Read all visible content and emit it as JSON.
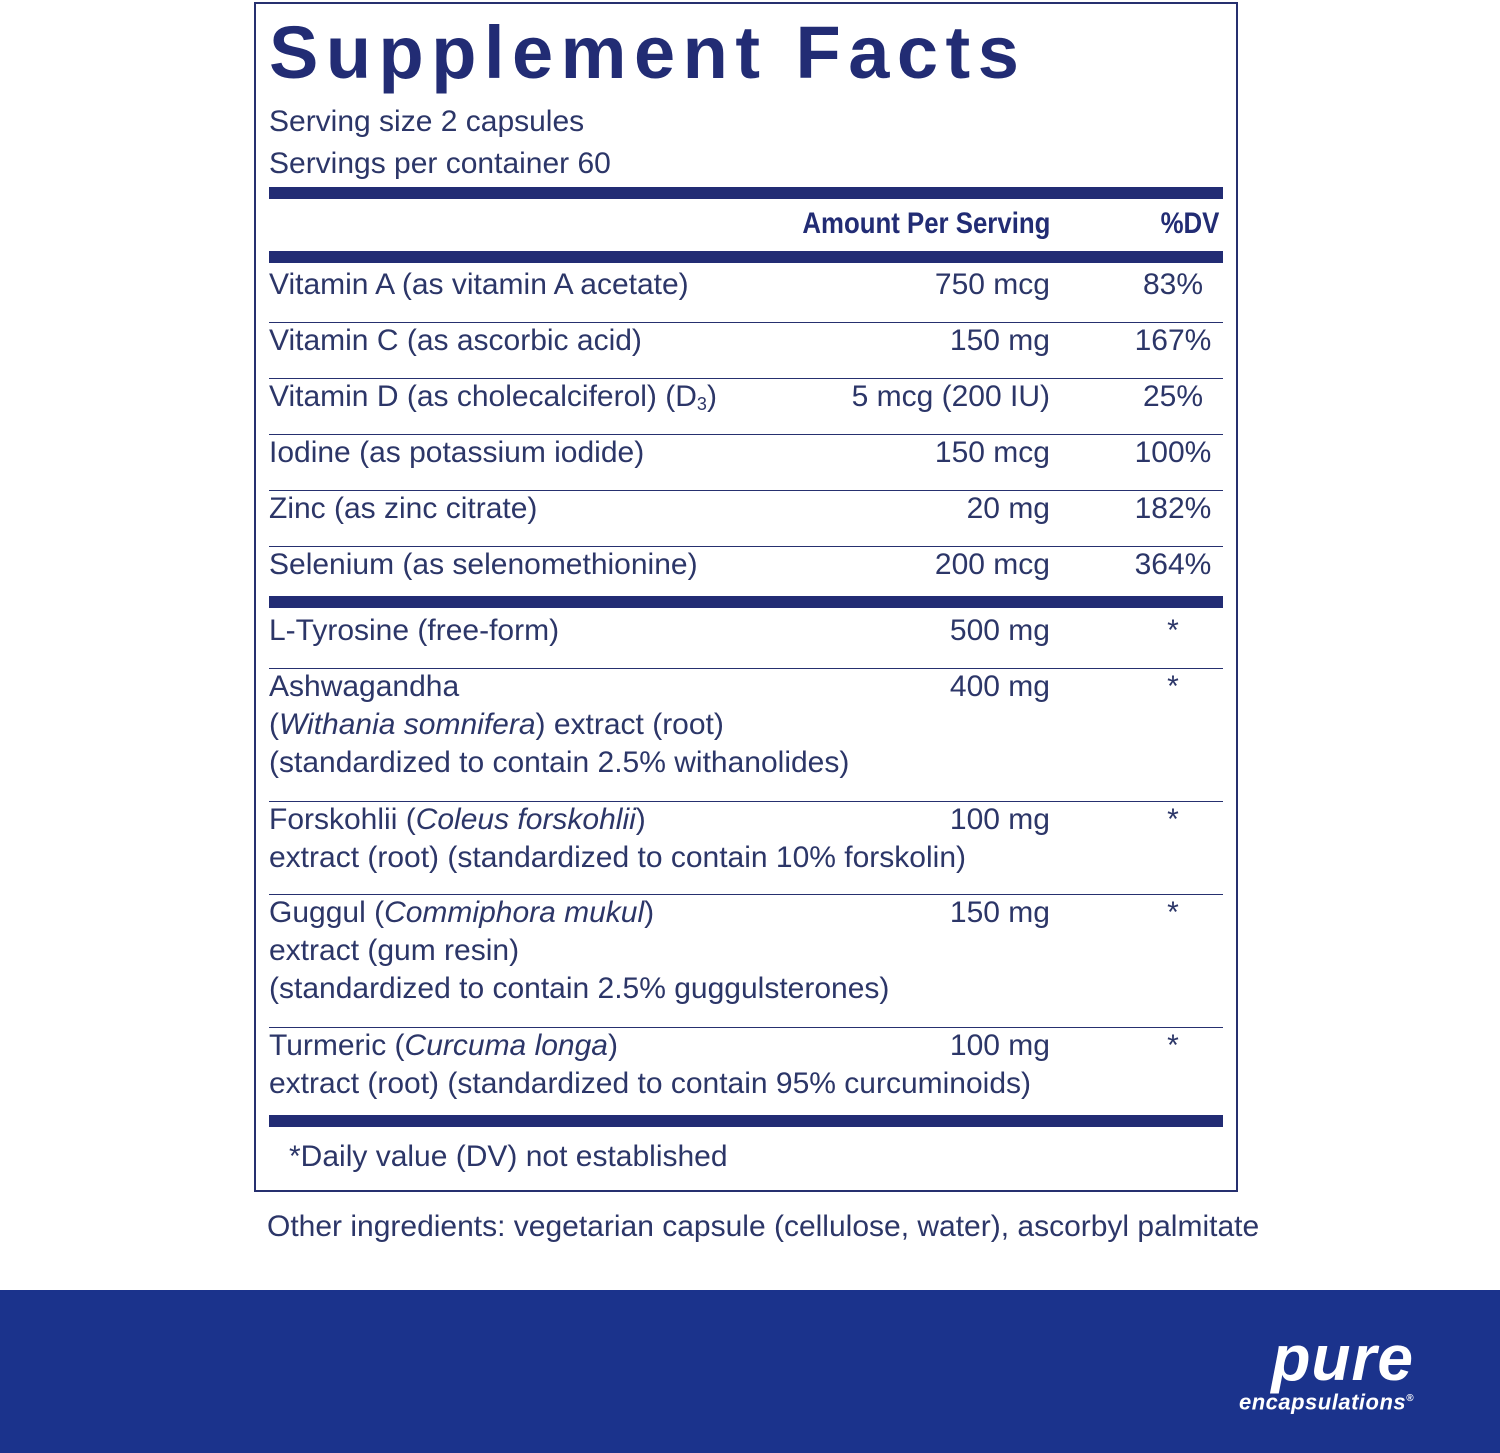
{
  "label": {
    "title": "Supplement Facts",
    "serving_size": "Serving size  2 capsules",
    "servings_per_container": "Servings per container  60",
    "header": {
      "amount": "Amount Per Serving",
      "dv": "%DV"
    },
    "rows": [
      {
        "name": [
          [
            {
              "t": "Vitamin A (as vitamin A acetate)"
            }
          ]
        ],
        "amount": "750 mcg",
        "dv": "83%"
      },
      {
        "name": [
          [
            {
              "t": "Vitamin C (as ascorbic acid)"
            }
          ]
        ],
        "amount": "150 mg",
        "dv": "167%"
      },
      {
        "name": [
          [
            {
              "t": "Vitamin D (as cholecalciferol) (D"
            },
            {
              "t": "3",
              "sub": true
            },
            {
              "t": ")"
            }
          ]
        ],
        "amount": "5 mcg (200 IU)",
        "dv": "25%"
      },
      {
        "name": [
          [
            {
              "t": "Iodine (as potassium iodide)"
            }
          ]
        ],
        "amount": "150 mcg",
        "dv": "100%"
      },
      {
        "name": [
          [
            {
              "t": "Zinc (as zinc citrate)"
            }
          ]
        ],
        "amount": "20 mg",
        "dv": "182%"
      },
      {
        "name": [
          [
            {
              "t": "Selenium (as selenomethionine)"
            }
          ]
        ],
        "amount": "200 mcg",
        "dv": "364%"
      },
      {
        "name": [
          [
            {
              "t": "L-Tyrosine (free-form)"
            }
          ]
        ],
        "amount": "500 mg",
        "dv": "*"
      },
      {
        "name": [
          [
            {
              "t": "Ashwagandha"
            }
          ],
          [
            {
              "t": "("
            },
            {
              "t": "Withania somnifera",
              "i": true
            },
            {
              "t": ") extract (root)"
            }
          ],
          [
            {
              "t": "(standardized to contain 2.5% withanolides)"
            }
          ]
        ],
        "amount": "400 mg",
        "dv": "*"
      },
      {
        "name": [
          [
            {
              "t": "Forskohlii ("
            },
            {
              "t": "Coleus forskohlii",
              "i": true
            },
            {
              "t": ")"
            }
          ],
          [
            {
              "t": "extract (root) (standardized to contain 10% forskolin)"
            }
          ]
        ],
        "amount": "100 mg",
        "dv": "*"
      },
      {
        "name": [
          [
            {
              "t": "Guggul ("
            },
            {
              "t": "Commiphora mukul",
              "i": true
            },
            {
              "t": ")"
            }
          ],
          [
            {
              "t": "extract (gum resin)"
            }
          ],
          [
            {
              "t": "(standardized to contain 2.5% guggulsterones)"
            }
          ]
        ],
        "amount": "150 mg",
        "dv": "*"
      },
      {
        "name": [
          [
            {
              "t": "Turmeric ("
            },
            {
              "t": "Curcuma longa",
              "i": true
            },
            {
              "t": ")"
            }
          ],
          [
            {
              "t": "extract (root) (standardized to contain 95% curcuminoids)"
            }
          ]
        ],
        "amount": "100 mg",
        "dv": "*"
      }
    ],
    "footnote": "*Daily value (DV) not established"
  },
  "other_ingredients": "Other ingredients: vegetarian capsule (cellulose, water), ascorbyl palmitate",
  "brand": {
    "line1": "pure",
    "line2": "encapsulations",
    "registered": "®"
  },
  "colors": {
    "navy": "#222c74",
    "band": "#1b338c",
    "text": "#2c3668"
  }
}
